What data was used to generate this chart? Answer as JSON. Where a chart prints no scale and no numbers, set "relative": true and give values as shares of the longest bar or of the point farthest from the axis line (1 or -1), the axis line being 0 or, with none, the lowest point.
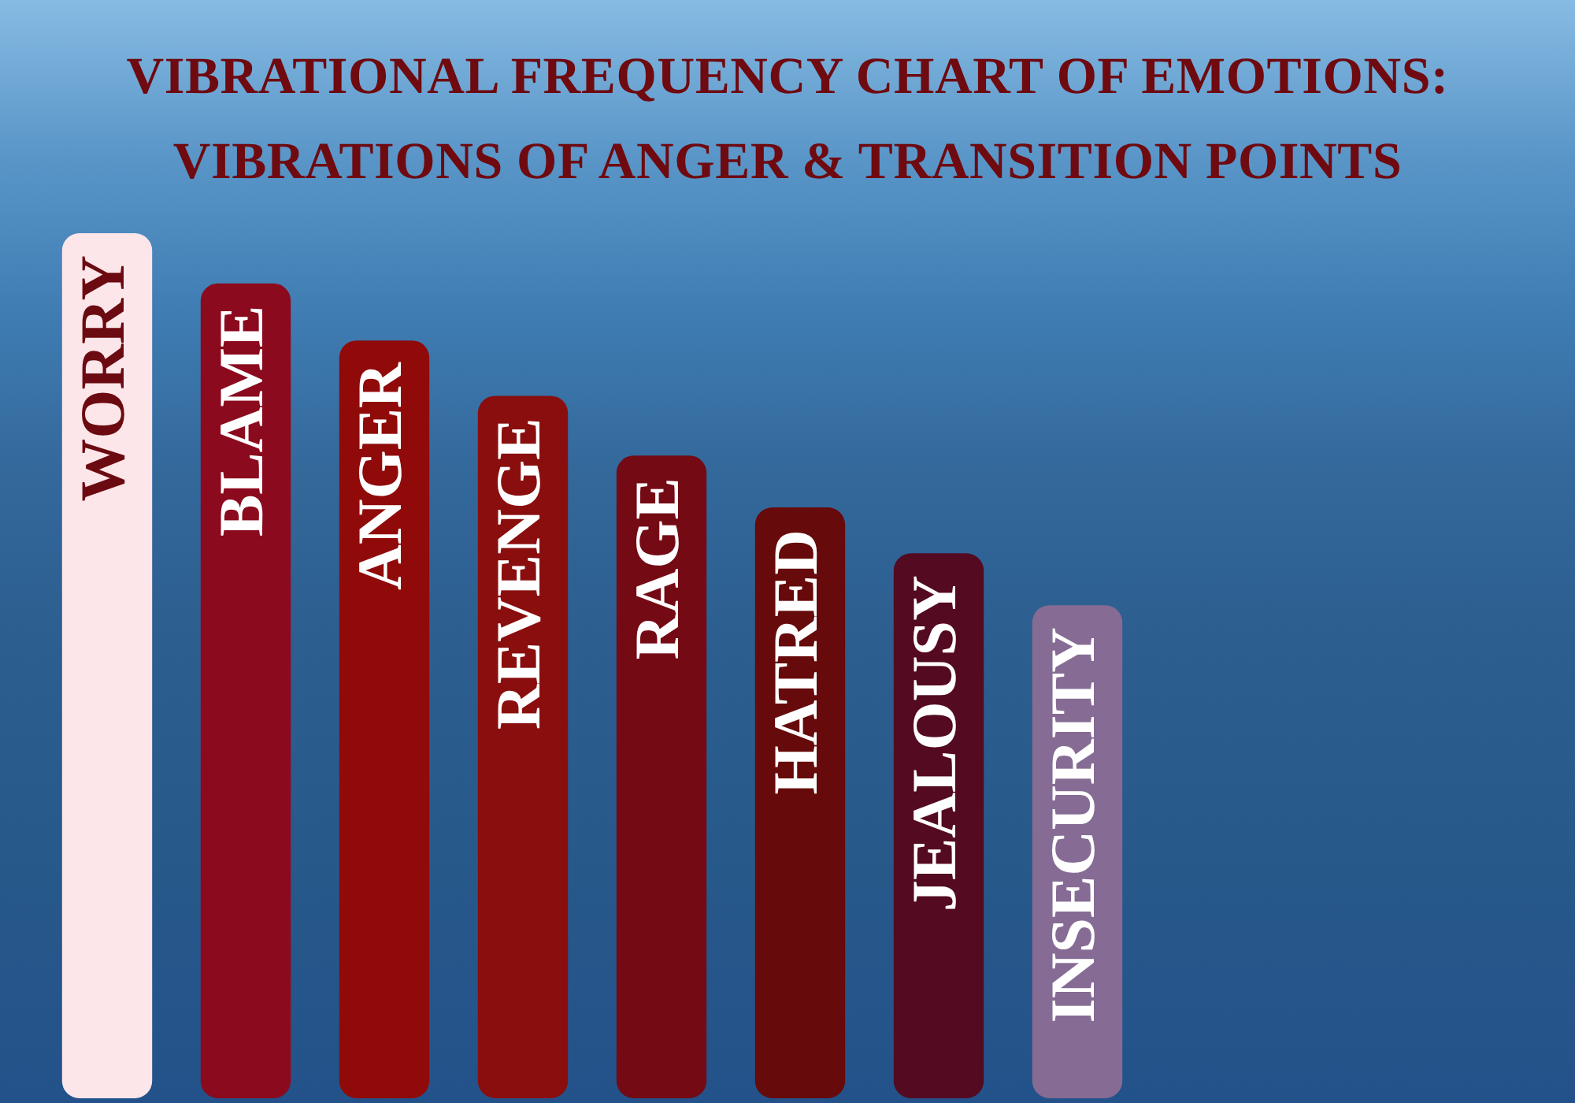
{
  "chart_data": {
    "type": "bar",
    "title": "VIBRATIONAL FREQUENCY CHART OF EMOTIONS: VIBRATIONS OF ANGER & TRANSITION POINTS",
    "categories": [
      "WORRY",
      "BLAME",
      "ANGER",
      "REVENGE",
      "RAGE",
      "HATRED",
      "JEALOUSY",
      "INSECURITY"
    ],
    "values": [
      1,
      0.942,
      0.876,
      0.812,
      0.743,
      0.683,
      0.63,
      0.57
    ],
    "colors": [
      "#fde6ea",
      "#8b0a1e",
      "#900a0a",
      "#8a0e0e",
      "#740a14",
      "#660a0b",
      "#540a20",
      "#866c94"
    ],
    "relative": true
  }
}
